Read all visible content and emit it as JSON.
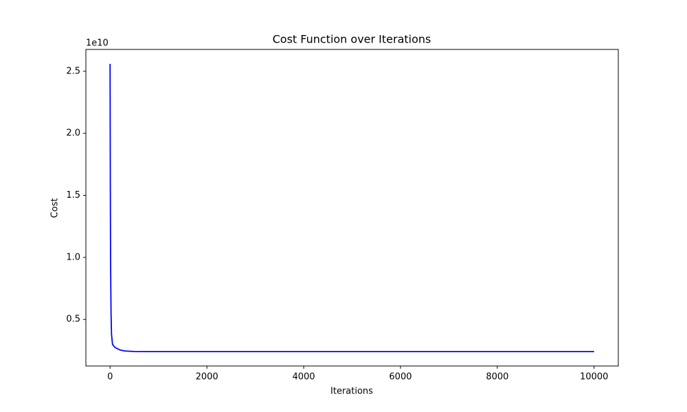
{
  "chart_data": {
    "type": "line",
    "title": "Cost Function over Iterations",
    "x_label": "Iterations",
    "y_label": "Cost",
    "y_offset_label": "1e10",
    "x": [
      0,
      5,
      10,
      20,
      30,
      50,
      100,
      200,
      300,
      500,
      700,
      1000,
      2000,
      4000,
      6000,
      8000,
      10000
    ],
    "series": [
      {
        "name": "Cost",
        "color": "#0000ff",
        "values": [
          2.56,
          1.6,
          1.0,
          0.55,
          0.38,
          0.3,
          0.275,
          0.255,
          0.246,
          0.242,
          0.241,
          0.241,
          0.241,
          0.241,
          0.241,
          0.241,
          0.241
        ]
      }
    ],
    "xlim": [
      -500,
      10500
    ],
    "xticks": [
      0,
      2000,
      4000,
      6000,
      8000,
      10000
    ],
    "ylim": [
      0.125,
      2.676
    ],
    "yticks": [
      {
        "value": 0.5,
        "label": "0.5"
      },
      {
        "value": 1,
        "label": "1.0"
      },
      {
        "value": 1.5,
        "label": "1.5"
      },
      {
        "value": 2,
        "label": "2.0"
      },
      {
        "value": 2.5,
        "label": "2.5"
      }
    ],
    "grid": false
  }
}
